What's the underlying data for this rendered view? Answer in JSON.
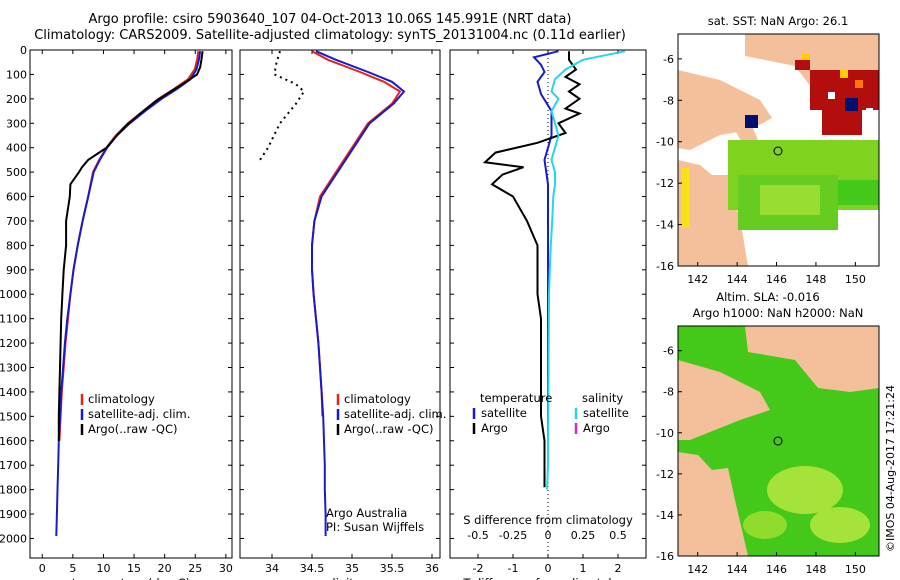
{
  "header": {
    "line1": "Argo profile: csiro 5903640_107 04-Oct-2013 10.06S 145.991E (NRT data)",
    "line2": "Climatology: CARS2009. Satellite-adjusted climatology: synTS_20131004.nc (0.11d earlier)"
  },
  "colors": {
    "climatology": "#e0241c",
    "satellite": "#1a1acc",
    "argo": "#000000",
    "salinity_satellite": "#22d8e8",
    "salinity_argo": "#dd22dd",
    "land": "#f4c09c",
    "sst": "#b30e0e",
    "sla": "#3fc23a"
  },
  "chart_data": [
    {
      "type": "line",
      "id": "temperature",
      "xlabel": "temperature (deg C)",
      "ylabel": "",
      "xlim": [
        -2,
        31
      ],
      "ylim": [
        2080,
        0
      ],
      "xticks": [
        0,
        5,
        10,
        15,
        20,
        25,
        30
      ],
      "yticks": [
        0,
        100,
        200,
        300,
        400,
        500,
        600,
        700,
        800,
        900,
        1000,
        1100,
        1200,
        1300,
        1400,
        1500,
        1600,
        1700,
        1800,
        1900,
        2000
      ],
      "legend": [
        "climatology",
        "satellite-adj. clim.",
        "Argo(..raw -QC)"
      ],
      "series": [
        {
          "name": "climatology",
          "color_key": "climatology",
          "points": [
            [
              25.5,
              5
            ],
            [
              25.3,
              40
            ],
            [
              24.9,
              80
            ],
            [
              23.8,
              120
            ],
            [
              21.5,
              160
            ],
            [
              19,
              200
            ],
            [
              16.5,
              250
            ],
            [
              14,
              300
            ],
            [
              12,
              350
            ],
            [
              10.5,
              400
            ],
            [
              9.3,
              450
            ],
            [
              8.3,
              500
            ],
            [
              7.5,
              600
            ],
            [
              6.6,
              700
            ],
            [
              5.8,
              800
            ],
            [
              5.1,
              900
            ],
            [
              4.6,
              1000
            ],
            [
              4.2,
              1100
            ],
            [
              3.8,
              1200
            ],
            [
              3.5,
              1300
            ],
            [
              3.2,
              1400
            ],
            [
              3,
              1500
            ],
            [
              2.8,
              1600
            ]
          ]
        },
        {
          "name": "satellite-adj. clim.",
          "color_key": "satellite",
          "points": [
            [
              25.8,
              5
            ],
            [
              25.6,
              40
            ],
            [
              25.2,
              80
            ],
            [
              24.2,
              120
            ],
            [
              22,
              160
            ],
            [
              19.5,
              200
            ],
            [
              16.8,
              250
            ],
            [
              14.3,
              300
            ],
            [
              12.2,
              350
            ],
            [
              10.6,
              400
            ],
            [
              9.4,
              450
            ],
            [
              8.4,
              500
            ],
            [
              7.5,
              600
            ],
            [
              6.6,
              700
            ],
            [
              5.8,
              800
            ],
            [
              5.1,
              900
            ],
            [
              4.6,
              1000
            ],
            [
              4.1,
              1100
            ],
            [
              3.7,
              1200
            ],
            [
              3.4,
              1300
            ],
            [
              3.1,
              1400
            ],
            [
              2.9,
              1500
            ],
            [
              2.7,
              1600
            ],
            [
              2.6,
              1700
            ],
            [
              2.5,
              1800
            ],
            [
              2.4,
              1900
            ],
            [
              2.3,
              1990
            ]
          ]
        },
        {
          "name": "Argo(..raw -QC)",
          "color_key": "argo",
          "points": [
            [
              26.2,
              5
            ],
            [
              26,
              40
            ],
            [
              25.8,
              70
            ],
            [
              25.3,
              100
            ],
            [
              23.5,
              130
            ],
            [
              21,
              170
            ],
            [
              18.5,
              210
            ],
            [
              16,
              260
            ],
            [
              13.7,
              310
            ],
            [
              12.2,
              350
            ],
            [
              10.5,
              400
            ],
            [
              7.5,
              450
            ],
            [
              6.5,
              480
            ],
            [
              6,
              500
            ],
            [
              4.6,
              550
            ],
            [
              4.5,
              600
            ],
            [
              3.9,
              700
            ],
            [
              3.9,
              800
            ],
            [
              3.5,
              900
            ],
            [
              3.3,
              1000
            ],
            [
              3.1,
              1100
            ],
            [
              3,
              1200
            ],
            [
              2.9,
              1300
            ],
            [
              2.8,
              1400
            ],
            [
              2.7,
              1500
            ],
            [
              2.7,
              1600
            ]
          ]
        }
      ]
    },
    {
      "type": "line",
      "id": "salinity",
      "xlabel": "salinity",
      "ylabel": "",
      "xlim": [
        33.6,
        36.1
      ],
      "ylim": [
        2080,
        0
      ],
      "xticks": [
        34,
        34.5,
        35,
        35.5,
        36
      ],
      "legend": [
        "climatology",
        "satellite-adj. clim.",
        "Argo(..raw -QC)"
      ],
      "annotation": [
        "Argo Australia",
        "PI: Susan Wijffels"
      ],
      "series": [
        {
          "name": "climatology",
          "color_key": "climatology",
          "points": [
            [
              34.5,
              5
            ],
            [
              34.7,
              40
            ],
            [
              35.1,
              90
            ],
            [
              35.4,
              130
            ],
            [
              35.6,
              170
            ],
            [
              35.5,
              220
            ],
            [
              35.2,
              300
            ],
            [
              35,
              400
            ],
            [
              34.8,
              500
            ],
            [
              34.6,
              600
            ],
            [
              34.53,
              700
            ],
            [
              34.5,
              800
            ],
            [
              34.5,
              900
            ],
            [
              34.52,
              1000
            ],
            [
              34.55,
              1100
            ],
            [
              34.58,
              1200
            ],
            [
              34.6,
              1300
            ],
            [
              34.62,
              1400
            ],
            [
              34.63,
              1500
            ]
          ]
        },
        {
          "name": "satellite-adj. clim.",
          "color_key": "satellite",
          "points": [
            [
              34.55,
              5
            ],
            [
              34.8,
              40
            ],
            [
              35.2,
              90
            ],
            [
              35.5,
              130
            ],
            [
              35.65,
              170
            ],
            [
              35.52,
              220
            ],
            [
              35.22,
              300
            ],
            [
              35.02,
              400
            ],
            [
              34.82,
              500
            ],
            [
              34.62,
              600
            ],
            [
              34.53,
              700
            ],
            [
              34.5,
              800
            ],
            [
              34.5,
              900
            ],
            [
              34.52,
              1000
            ],
            [
              34.55,
              1100
            ],
            [
              34.58,
              1200
            ],
            [
              34.6,
              1300
            ],
            [
              34.62,
              1400
            ],
            [
              34.64,
              1500
            ],
            [
              34.65,
              1600
            ],
            [
              34.66,
              1700
            ],
            [
              34.66,
              1800
            ],
            [
              34.67,
              1900
            ],
            [
              34.67,
              1990
            ]
          ]
        },
        {
          "name": "Argo(..raw -QC)",
          "color_key": "argo",
          "dotted": true,
          "points": [
            [
              34.1,
              5
            ],
            [
              34.05,
              60
            ],
            [
              34.03,
              100
            ],
            [
              34.3,
              140
            ],
            [
              34.4,
              170
            ],
            [
              34.3,
              220
            ],
            [
              34.1,
              300
            ],
            [
              33.95,
              400
            ],
            [
              33.85,
              450
            ]
          ]
        }
      ]
    },
    {
      "type": "line",
      "id": "difference",
      "xlabel": "T difference from climatology",
      "xlabel_top": "S difference from climatology",
      "xlim": [
        -2.8,
        2.8
      ],
      "ylim": [
        2080,
        0
      ],
      "xticks": [
        -2,
        -1,
        0,
        1,
        2
      ],
      "s_ticks": [
        "-0.5",
        "-0.25",
        "0",
        "0.25",
        "0.5"
      ],
      "legend_headers": [
        "temperature",
        "salinity"
      ],
      "legend": [
        "satellite",
        "Argo",
        "satellite",
        "Argo"
      ],
      "series": [
        {
          "name": "temperature satellite",
          "color_key": "satellite",
          "points": [
            [
              0.3,
              5
            ],
            [
              -0.4,
              30
            ],
            [
              -0.2,
              60
            ],
            [
              -0.1,
              90
            ],
            [
              -0.3,
              130
            ],
            [
              -0.2,
              180
            ],
            [
              0.1,
              250
            ],
            [
              0.1,
              350
            ],
            [
              -0.1,
              450
            ],
            [
              0,
              550
            ],
            [
              0,
              700
            ],
            [
              0,
              900
            ],
            [
              0,
              1100
            ],
            [
              0,
              1300
            ],
            [
              0,
              1500
            ],
            [
              0,
              1600
            ]
          ]
        },
        {
          "name": "temperature Argo",
          "color_key": "argo",
          "points": [
            [
              0.6,
              5
            ],
            [
              0.6,
              40
            ],
            [
              0.8,
              80
            ],
            [
              0.5,
              110
            ],
            [
              0.9,
              140
            ],
            [
              0.6,
              170
            ],
            [
              0.9,
              200
            ],
            [
              0.5,
              240
            ],
            [
              0.9,
              260
            ],
            [
              0.3,
              300
            ],
            [
              0.5,
              340
            ],
            [
              -0.3,
              380
            ],
            [
              -1.5,
              420
            ],
            [
              -1.8,
              460
            ],
            [
              -0.7,
              480
            ],
            [
              -1.3,
              510
            ],
            [
              -1.6,
              550
            ],
            [
              -1.0,
              600
            ],
            [
              -0.8,
              650
            ],
            [
              -0.6,
              700
            ],
            [
              -0.3,
              800
            ],
            [
              -0.3,
              900
            ],
            [
              -0.3,
              1000
            ],
            [
              -0.2,
              1100
            ],
            [
              -0.2,
              1200
            ],
            [
              -0.2,
              1300
            ],
            [
              -0.2,
              1400
            ],
            [
              -0.2,
              1500
            ],
            [
              -0.1,
              1600
            ],
            [
              -0.1,
              1700
            ],
            [
              -0.1,
              1790
            ]
          ]
        },
        {
          "name": "salinity satellite",
          "color_key": "salinity_satellite",
          "points": [
            [
              2.2,
              5
            ],
            [
              1.0,
              40
            ],
            [
              0.5,
              80
            ],
            [
              0.2,
              120
            ],
            [
              0.1,
              170
            ],
            [
              0.3,
              200
            ],
            [
              0.1,
              250
            ],
            [
              0.2,
              300
            ],
            [
              0.3,
              350
            ],
            [
              0.2,
              400
            ],
            [
              0.1,
              450
            ],
            [
              0.2,
              500
            ],
            [
              0.2,
              550
            ],
            [
              0.15,
              600
            ],
            [
              0.12,
              700
            ],
            [
              0.08,
              800
            ],
            [
              0.05,
              900
            ],
            [
              0.03,
              1000
            ],
            [
              0.02,
              1200
            ],
            [
              0.01,
              1400
            ],
            [
              0,
              1600
            ],
            [
              0,
              1700
            ],
            [
              -0.03,
              1800
            ]
          ]
        },
        {
          "name": "salinity Argo",
          "color_key": "salinity_argo",
          "points": []
        }
      ]
    },
    {
      "type": "heatmap",
      "id": "sst_map",
      "title": "sat. SST: NaN Argo: 26.1",
      "xticks": [
        142,
        144,
        146,
        148,
        150
      ],
      "yticks": [
        -6,
        -8,
        -10,
        -12,
        -14,
        -16
      ]
    },
    {
      "type": "heatmap",
      "id": "sla_map",
      "title_line1": "Altim. SLA: -0.016",
      "title_line2": "Argo h1000: NaN h2000: NaN",
      "xticks": [
        142,
        144,
        146,
        148,
        150
      ],
      "yticks": [
        -6,
        -8,
        -10,
        -12,
        -14,
        -16
      ]
    }
  ],
  "footer": {
    "credit": "©IMOS 04-Aug-2017 17:21:24"
  }
}
